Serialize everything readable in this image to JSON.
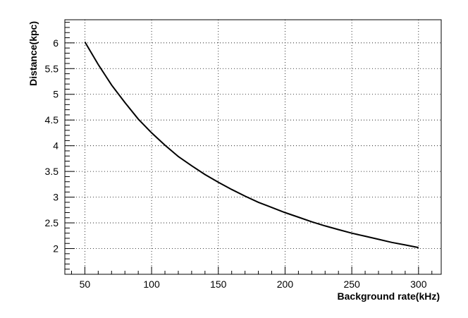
{
  "chart_data": {
    "type": "line",
    "title": "",
    "xlabel": "Background rate(kHz)",
    "ylabel": "Distance(kpc)",
    "xlim": [
      35,
      317
    ],
    "ylim": [
      1.5,
      6.45
    ],
    "grid": true,
    "x_ticks": [
      50,
      100,
      150,
      200,
      250,
      300
    ],
    "y_ticks": [
      2,
      2.5,
      3,
      3.5,
      4,
      4.5,
      5,
      5.5,
      6
    ],
    "x_tick_labels": [
      "50",
      "100",
      "150",
      "200",
      "250",
      "300"
    ],
    "y_tick_labels": [
      "2",
      "2.5",
      "3",
      "3.5",
      "4",
      "4.5",
      "5",
      "5.5",
      "6"
    ],
    "series": [
      {
        "color": "#000000",
        "x": [
          50,
          60,
          70,
          80,
          90,
          100,
          110,
          120,
          130,
          140,
          150,
          160,
          170,
          180,
          190,
          200,
          210,
          220,
          230,
          240,
          250,
          260,
          270,
          280,
          290,
          300
        ],
        "y": [
          6.02,
          5.58,
          5.18,
          4.84,
          4.52,
          4.25,
          4.01,
          3.79,
          3.61,
          3.44,
          3.29,
          3.15,
          3.02,
          2.9,
          2.8,
          2.7,
          2.61,
          2.52,
          2.44,
          2.37,
          2.3,
          2.24,
          2.18,
          2.12,
          2.07,
          2.02
        ]
      }
    ]
  }
}
